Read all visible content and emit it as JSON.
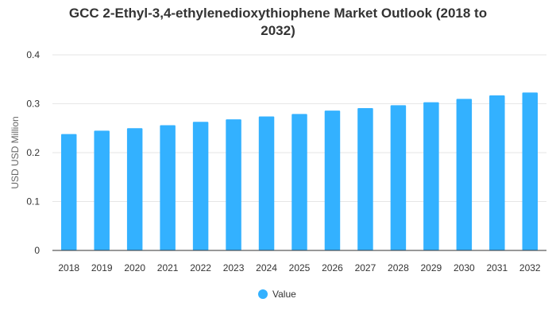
{
  "chart_data": {
    "type": "bar",
    "title_line1": "GCC 2-Ethyl-3,4-ethylenedioxythiophene Market Outlook (2018 to",
    "title_line2": "2032)",
    "ylabel": "USD USD Million",
    "xlabel": "",
    "categories": [
      "2018",
      "2019",
      "2020",
      "2021",
      "2022",
      "2023",
      "2024",
      "2025",
      "2026",
      "2027",
      "2028",
      "2029",
      "2030",
      "2031",
      "2032"
    ],
    "series": [
      {
        "name": "Value",
        "color": "#33b1ff",
        "values": [
          0.238,
          0.245,
          0.25,
          0.256,
          0.263,
          0.268,
          0.274,
          0.279,
          0.286,
          0.291,
          0.297,
          0.303,
          0.31,
          0.317,
          0.323
        ]
      }
    ],
    "ylim": [
      0,
      0.4
    ],
    "yticks": [
      "0",
      "0.1",
      "0.2",
      "0.3",
      "0.4"
    ],
    "grid": true,
    "legend_position": "bottom-center"
  }
}
